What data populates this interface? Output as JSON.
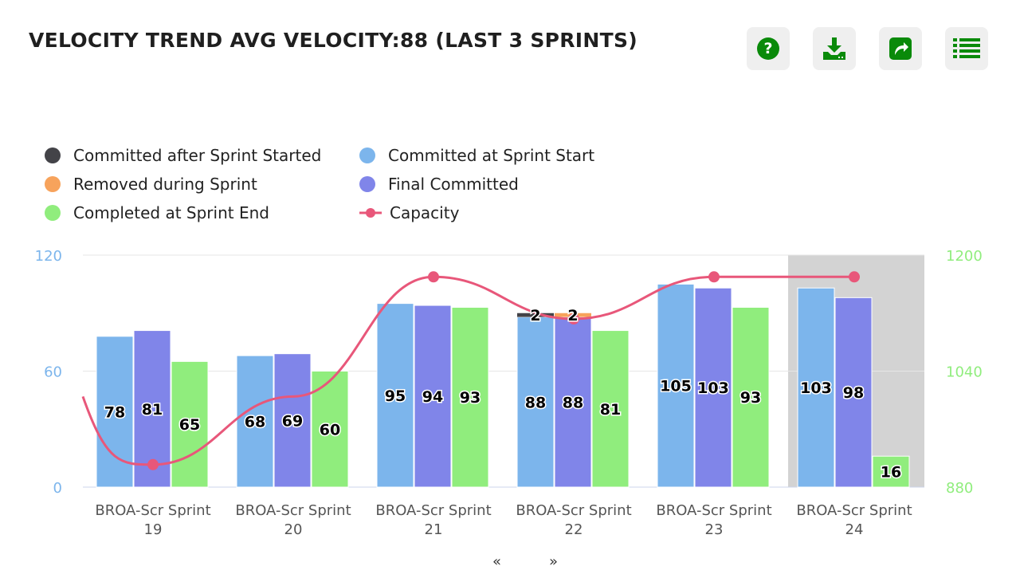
{
  "header": {
    "title": "VELOCITY TREND AVG VELOCITY:88 (LAST 3 SPRINTS)",
    "buttons": [
      {
        "icon": "help-icon",
        "label": "Help"
      },
      {
        "icon": "download-icon",
        "label": "Download"
      },
      {
        "icon": "share-icon",
        "label": "Share"
      },
      {
        "icon": "list-icon",
        "label": "Data table"
      }
    ]
  },
  "legend": [
    {
      "label": "Committed after Sprint Started",
      "color": "#434348"
    },
    {
      "label": "Committed at Sprint Start",
      "color": "#7cb5ec"
    },
    {
      "label": "Removed during Sprint",
      "color": "#f7a35c"
    },
    {
      "label": "Final Committed",
      "color": "#8085e9"
    },
    {
      "label": "Completed at Sprint End",
      "color": "#90ed7d"
    },
    {
      "label": "Capacity",
      "color": "#e8577a"
    }
  ],
  "nav": {
    "prev": "«",
    "next": "»"
  },
  "chart_data": {
    "type": "bar",
    "title": "VELOCITY TREND AVG VELOCITY:88 (LAST 3 SPRINTS)",
    "categories": [
      [
        "BROA-Scr Sprint",
        "19"
      ],
      [
        "BROA-Scr Sprint",
        "20"
      ],
      [
        "BROA-Scr Sprint",
        "21"
      ],
      [
        "BROA-Scr Sprint",
        "22"
      ],
      [
        "BROA-Scr Sprint",
        "23"
      ],
      [
        "BROA-Scr Sprint",
        "24"
      ]
    ],
    "highlighted_category": 5,
    "y_left": {
      "min": 0,
      "max": 120,
      "ticks": [
        "0",
        "60",
        "120"
      ],
      "color": "#7cb5ec"
    },
    "y_right": {
      "min": 880,
      "max": 1200,
      "ticks": [
        "880",
        "1040",
        "1200"
      ],
      "color": "#90ed7d"
    },
    "series": [
      {
        "name": "Committed at Sprint Start",
        "color": "#7cb5ec",
        "values": [
          78,
          68,
          95,
          88,
          105,
          103
        ],
        "labels": [
          "78",
          "68",
          "95",
          "88",
          "105",
          "103"
        ]
      },
      {
        "name": "Committed after Sprint Started",
        "color": "#434348",
        "stack_on": 0,
        "values": [
          0,
          0,
          0,
          2,
          0,
          0
        ],
        "labels": [
          "",
          "",
          "",
          "2",
          "",
          ""
        ]
      },
      {
        "name": "Final Committed",
        "color": "#8085e9",
        "values": [
          81,
          69,
          94,
          88,
          103,
          98
        ],
        "labels": [
          "81",
          "69",
          "94",
          "88",
          "103",
          "98"
        ]
      },
      {
        "name": "Removed during Sprint",
        "color": "#f7a35c",
        "stack_on": 2,
        "values": [
          0,
          0,
          0,
          2,
          0,
          0
        ],
        "labels": [
          "",
          "",
          "",
          "2",
          "",
          ""
        ]
      },
      {
        "name": "Completed at Sprint End",
        "color": "#90ed7d",
        "values": [
          65,
          60,
          93,
          81,
          93,
          16
        ],
        "labels": [
          "65",
          "60",
          "93",
          "81",
          "93",
          "16"
        ]
      },
      {
        "name": "Capacity",
        "color": "#e8577a",
        "type": "spline",
        "axis": "right",
        "values": [
          911,
          1005,
          1170,
          1112,
          1170,
          1170
        ]
      }
    ]
  }
}
